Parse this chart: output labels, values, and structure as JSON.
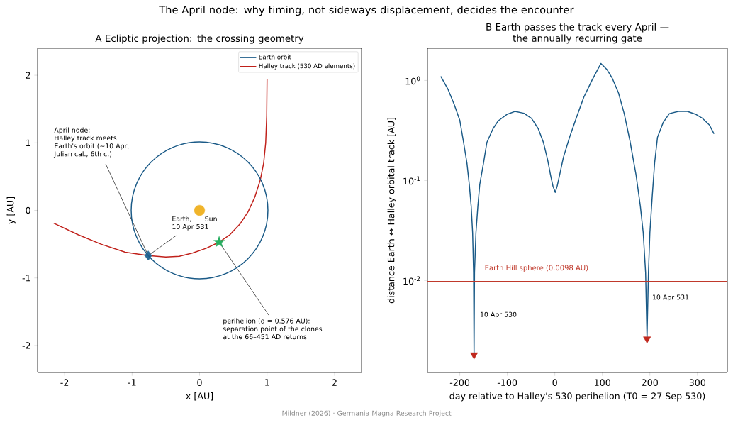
{
  "chart_data": [
    {
      "type": "line",
      "title": "The April node: why timing, not sideways displacement, decides the encounter",
      "subtitle": "A  Ecliptic projection: the crossing geometry",
      "xlabel": "x [AU]",
      "ylabel": "y [AU]",
      "xlim": [
        -2.4,
        2.4
      ],
      "ylim": [
        -2.4,
        2.4
      ],
      "xticks": [
        -2,
        -1,
        0,
        1,
        2
      ],
      "yticks": [
        -2,
        -1,
        0,
        1,
        2
      ],
      "legend": "top right",
      "series": [
        {
          "name": "Halley track (530 AD elements)",
          "color": "#c0201a",
          "x": [
            -2.16,
            -1.8,
            -1.46,
            -1.1,
            -0.76,
            -0.5,
            -0.3,
            -0.1,
            0.1,
            0.29,
            0.45,
            0.6,
            0.72,
            0.82,
            0.9,
            0.95,
            0.98,
            0.995,
            1.0
          ],
          "values": [
            -0.19,
            -0.36,
            -0.5,
            -0.62,
            -0.67,
            -0.69,
            -0.68,
            -0.63,
            -0.56,
            -0.47,
            -0.36,
            -0.2,
            -0.02,
            0.2,
            0.45,
            0.7,
            1.0,
            1.4,
            1.94
          ]
        },
        {
          "type": "scatter",
          "marker": "circle",
          "color": "#f0b42a",
          "x": [
            0
          ],
          "values": [
            0
          ]
        },
        {
          "type": "scatter",
          "marker": "diamond",
          "color": "#2a6a96",
          "x": [
            -0.76
          ],
          "values": [
            -0.67
          ]
        },
        {
          "type": "scatter",
          "marker": "star",
          "color": "#27ae60",
          "x": [
            0.29
          ],
          "values": [
            -0.47
          ]
        }
      ],
      "annotations": [
        {
          "text": "April node:\nHalley track meets\nEarth's orbit (~10 Apr,\nJulian cal., 6th c.)",
          "x": -0.76,
          "y": -0.67
        },
        {
          "text": "Earth,\n10 Apr 531",
          "x": -0.76,
          "y": -0.67
        },
        {
          "text": "Sun",
          "x": 0,
          "y": 0
        },
        {
          "text": "perihelion (q = 0.576 AU):\nseparation point of the clones\nat the 66–451 AD returns",
          "x": 0.29,
          "y": -0.47
        },
        "Earth orbit"
      ]
    },
    {
      "type": "line",
      "title": "B  Earth passes the track every April —\nthe annually recurring gate",
      "xlabel": "day relative to Halley's 530 perihelion (T0 = 27 Sep 530)",
      "ylabel": "distance Earth ↔ Halley orbital track [AU]",
      "log": "y",
      "xlim": [
        -268,
        363
      ],
      "ylim": [
        0.0012,
        2.1
      ],
      "xticks": [
        -200,
        -100,
        0,
        100,
        200,
        300
      ],
      "yticks": [
        {
          "value": 1,
          "label": "10$^{0}$"
        },
        {
          "value": 0.1,
          "label": "10$^{-1}$"
        },
        {
          "value": 0.01,
          "label": "10$^{-2}$"
        }
      ],
      "ref_lines": [
        {
          "axis": "y",
          "value": 0.0098,
          "label": "Earth Hill sphere (0.0098 AU)",
          "color": "#c0392b"
        }
      ],
      "series": [
        {
          "color": "#1a5a87",
          "x": [
            -240,
            -225,
            -212,
            -200,
            -192,
            -185,
            -180,
            -176,
            -173,
            -171,
            -170,
            -169,
            -166,
            -162,
            -158,
            -150,
            -143,
            -130,
            -119,
            -100,
            -84,
            -65,
            -49,
            -35,
            -24,
            -15,
            -9,
            -4,
            1,
            5,
            10,
            18,
            31,
            45,
            61,
            78,
            97,
            110,
            121,
            134,
            146,
            158,
            171,
            180,
            186,
            191,
            194,
            197,
            200,
            205,
            210,
            216,
            228,
            241,
            260,
            279,
            296,
            311,
            325,
            335
          ],
          "values": [
            1.1,
            0.82,
            0.58,
            0.4,
            0.24,
            0.15,
            0.091,
            0.055,
            0.03,
            0.012,
            0.0018,
            0.012,
            0.03,
            0.055,
            0.091,
            0.15,
            0.24,
            0.33,
            0.395,
            0.46,
            0.49,
            0.47,
            0.417,
            0.33,
            0.24,
            0.16,
            0.113,
            0.088,
            0.076,
            0.088,
            0.113,
            0.17,
            0.27,
            0.42,
            0.68,
            1.0,
            1.48,
            1.28,
            1.05,
            0.75,
            0.466,
            0.25,
            0.113,
            0.055,
            0.03,
            0.012,
            0.0026,
            0.012,
            0.03,
            0.07,
            0.15,
            0.27,
            0.38,
            0.466,
            0.49,
            0.49,
            0.46,
            0.417,
            0.36,
            0.293
          ]
        },
        {
          "type": "scatter",
          "marker": "triangle",
          "color": "#c0281e",
          "x": [
            -170,
            194
          ],
          "values": [
            0.0018,
            0.0026
          ]
        }
      ],
      "annotations": [
        {
          "text": "10 Apr 530",
          "x": -170,
          "y": 0.0045
        },
        {
          "text": "10 Apr 531",
          "x": 194,
          "y": 0.0067
        },
        "Mildner (2026) · Germania Magna Research Project"
      ]
    }
  ]
}
